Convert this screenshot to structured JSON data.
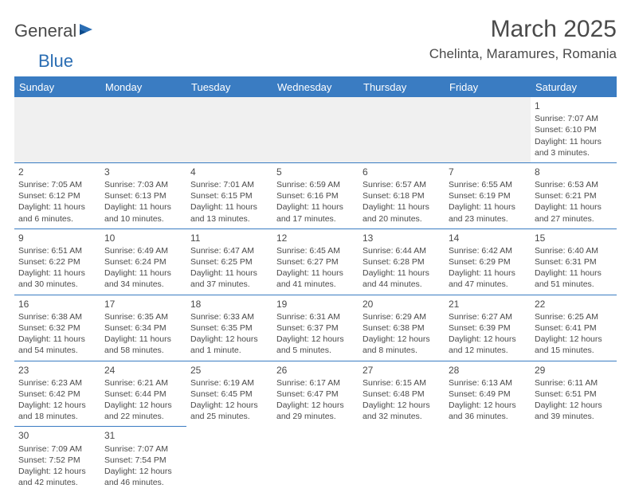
{
  "logo": {
    "text_dark": "General",
    "text_blue": "Blue"
  },
  "title": "March 2025",
  "location": "Chelinta, Maramures, Romania",
  "header_bg": "#3a7cc2",
  "header_fg": "#ffffff",
  "days_of_week": [
    "Sunday",
    "Monday",
    "Tuesday",
    "Wednesday",
    "Thursday",
    "Friday",
    "Saturday"
  ],
  "weeks": [
    [
      null,
      null,
      null,
      null,
      null,
      null,
      {
        "n": "1",
        "sr": "Sunrise: 7:07 AM",
        "ss": "Sunset: 6:10 PM",
        "d1": "Daylight: 11 hours",
        "d2": "and 3 minutes."
      }
    ],
    [
      {
        "n": "2",
        "sr": "Sunrise: 7:05 AM",
        "ss": "Sunset: 6:12 PM",
        "d1": "Daylight: 11 hours",
        "d2": "and 6 minutes."
      },
      {
        "n": "3",
        "sr": "Sunrise: 7:03 AM",
        "ss": "Sunset: 6:13 PM",
        "d1": "Daylight: 11 hours",
        "d2": "and 10 minutes."
      },
      {
        "n": "4",
        "sr": "Sunrise: 7:01 AM",
        "ss": "Sunset: 6:15 PM",
        "d1": "Daylight: 11 hours",
        "d2": "and 13 minutes."
      },
      {
        "n": "5",
        "sr": "Sunrise: 6:59 AM",
        "ss": "Sunset: 6:16 PM",
        "d1": "Daylight: 11 hours",
        "d2": "and 17 minutes."
      },
      {
        "n": "6",
        "sr": "Sunrise: 6:57 AM",
        "ss": "Sunset: 6:18 PM",
        "d1": "Daylight: 11 hours",
        "d2": "and 20 minutes."
      },
      {
        "n": "7",
        "sr": "Sunrise: 6:55 AM",
        "ss": "Sunset: 6:19 PM",
        "d1": "Daylight: 11 hours",
        "d2": "and 23 minutes."
      },
      {
        "n": "8",
        "sr": "Sunrise: 6:53 AM",
        "ss": "Sunset: 6:21 PM",
        "d1": "Daylight: 11 hours",
        "d2": "and 27 minutes."
      }
    ],
    [
      {
        "n": "9",
        "sr": "Sunrise: 6:51 AM",
        "ss": "Sunset: 6:22 PM",
        "d1": "Daylight: 11 hours",
        "d2": "and 30 minutes."
      },
      {
        "n": "10",
        "sr": "Sunrise: 6:49 AM",
        "ss": "Sunset: 6:24 PM",
        "d1": "Daylight: 11 hours",
        "d2": "and 34 minutes."
      },
      {
        "n": "11",
        "sr": "Sunrise: 6:47 AM",
        "ss": "Sunset: 6:25 PM",
        "d1": "Daylight: 11 hours",
        "d2": "and 37 minutes."
      },
      {
        "n": "12",
        "sr": "Sunrise: 6:45 AM",
        "ss": "Sunset: 6:27 PM",
        "d1": "Daylight: 11 hours",
        "d2": "and 41 minutes."
      },
      {
        "n": "13",
        "sr": "Sunrise: 6:44 AM",
        "ss": "Sunset: 6:28 PM",
        "d1": "Daylight: 11 hours",
        "d2": "and 44 minutes."
      },
      {
        "n": "14",
        "sr": "Sunrise: 6:42 AM",
        "ss": "Sunset: 6:29 PM",
        "d1": "Daylight: 11 hours",
        "d2": "and 47 minutes."
      },
      {
        "n": "15",
        "sr": "Sunrise: 6:40 AM",
        "ss": "Sunset: 6:31 PM",
        "d1": "Daylight: 11 hours",
        "d2": "and 51 minutes."
      }
    ],
    [
      {
        "n": "16",
        "sr": "Sunrise: 6:38 AM",
        "ss": "Sunset: 6:32 PM",
        "d1": "Daylight: 11 hours",
        "d2": "and 54 minutes."
      },
      {
        "n": "17",
        "sr": "Sunrise: 6:35 AM",
        "ss": "Sunset: 6:34 PM",
        "d1": "Daylight: 11 hours",
        "d2": "and 58 minutes."
      },
      {
        "n": "18",
        "sr": "Sunrise: 6:33 AM",
        "ss": "Sunset: 6:35 PM",
        "d1": "Daylight: 12 hours",
        "d2": "and 1 minute."
      },
      {
        "n": "19",
        "sr": "Sunrise: 6:31 AM",
        "ss": "Sunset: 6:37 PM",
        "d1": "Daylight: 12 hours",
        "d2": "and 5 minutes."
      },
      {
        "n": "20",
        "sr": "Sunrise: 6:29 AM",
        "ss": "Sunset: 6:38 PM",
        "d1": "Daylight: 12 hours",
        "d2": "and 8 minutes."
      },
      {
        "n": "21",
        "sr": "Sunrise: 6:27 AM",
        "ss": "Sunset: 6:39 PM",
        "d1": "Daylight: 12 hours",
        "d2": "and 12 minutes."
      },
      {
        "n": "22",
        "sr": "Sunrise: 6:25 AM",
        "ss": "Sunset: 6:41 PM",
        "d1": "Daylight: 12 hours",
        "d2": "and 15 minutes."
      }
    ],
    [
      {
        "n": "23",
        "sr": "Sunrise: 6:23 AM",
        "ss": "Sunset: 6:42 PM",
        "d1": "Daylight: 12 hours",
        "d2": "and 18 minutes."
      },
      {
        "n": "24",
        "sr": "Sunrise: 6:21 AM",
        "ss": "Sunset: 6:44 PM",
        "d1": "Daylight: 12 hours",
        "d2": "and 22 minutes."
      },
      {
        "n": "25",
        "sr": "Sunrise: 6:19 AM",
        "ss": "Sunset: 6:45 PM",
        "d1": "Daylight: 12 hours",
        "d2": "and 25 minutes."
      },
      {
        "n": "26",
        "sr": "Sunrise: 6:17 AM",
        "ss": "Sunset: 6:47 PM",
        "d1": "Daylight: 12 hours",
        "d2": "and 29 minutes."
      },
      {
        "n": "27",
        "sr": "Sunrise: 6:15 AM",
        "ss": "Sunset: 6:48 PM",
        "d1": "Daylight: 12 hours",
        "d2": "and 32 minutes."
      },
      {
        "n": "28",
        "sr": "Sunrise: 6:13 AM",
        "ss": "Sunset: 6:49 PM",
        "d1": "Daylight: 12 hours",
        "d2": "and 36 minutes."
      },
      {
        "n": "29",
        "sr": "Sunrise: 6:11 AM",
        "ss": "Sunset: 6:51 PM",
        "d1": "Daylight: 12 hours",
        "d2": "and 39 minutes."
      }
    ],
    [
      {
        "n": "30",
        "sr": "Sunrise: 7:09 AM",
        "ss": "Sunset: 7:52 PM",
        "d1": "Daylight: 12 hours",
        "d2": "and 42 minutes."
      },
      {
        "n": "31",
        "sr": "Sunrise: 7:07 AM",
        "ss": "Sunset: 7:54 PM",
        "d1": "Daylight: 12 hours",
        "d2": "and 46 minutes."
      },
      null,
      null,
      null,
      null,
      null
    ]
  ]
}
